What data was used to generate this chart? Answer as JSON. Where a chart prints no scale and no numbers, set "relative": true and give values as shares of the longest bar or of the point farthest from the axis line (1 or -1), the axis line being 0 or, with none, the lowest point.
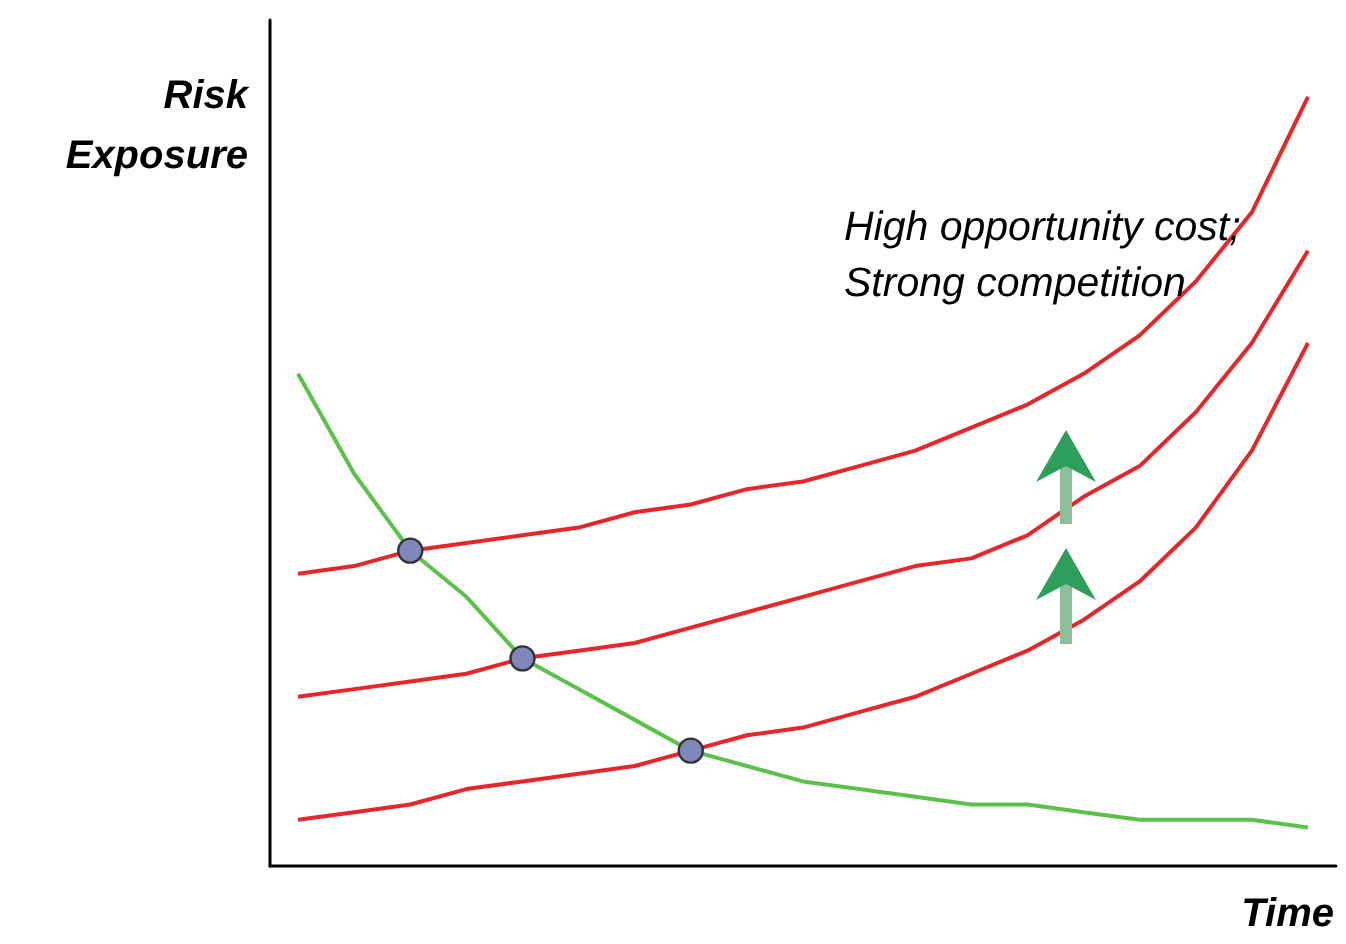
{
  "chart_data": {
    "type": "line",
    "relative": true,
    "xlabel": "Time",
    "ylabel": "Risk Exposure",
    "annotations": [
      "High opportunity cost; Strong competition"
    ],
    "categories": [
      null,
      null,
      null,
      null,
      null,
      null,
      null,
      null,
      null,
      null,
      null,
      null,
      null,
      null,
      null,
      null,
      null,
      null,
      null
    ],
    "series": [
      {
        "color": "#5cc14a",
        "values": [
          0.64,
          0.51,
          0.41,
          0.35,
          0.27,
          0.23,
          0.19,
          0.15,
          0.13,
          0.11,
          0.1,
          0.09,
          0.08,
          0.08,
          0.07,
          0.06,
          0.06,
          0.06,
          0.05
        ]
      },
      {
        "color": "#e8262a",
        "values": [
          0.38,
          0.39,
          0.41,
          0.42,
          0.43,
          0.44,
          0.46,
          0.47,
          0.49,
          0.5,
          0.52,
          0.54,
          0.57,
          0.6,
          0.64,
          0.69,
          0.76,
          0.85,
          1
        ]
      },
      {
        "color": "#e8262a",
        "values": [
          0.22,
          0.23,
          0.24,
          0.25,
          0.27,
          0.28,
          0.29,
          0.31,
          0.33,
          0.35,
          0.37,
          0.39,
          0.4,
          0.43,
          0.48,
          0.52,
          0.59,
          0.68,
          0.8
        ]
      },
      {
        "color": "#e8262a",
        "values": [
          0.06,
          0.07,
          0.08,
          0.1,
          0.11,
          0.12,
          0.13,
          0.15,
          0.17,
          0.18,
          0.2,
          0.22,
          0.25,
          0.28,
          0.32,
          0.37,
          0.44,
          0.54,
          0.68
        ]
      }
    ]
  }
}
